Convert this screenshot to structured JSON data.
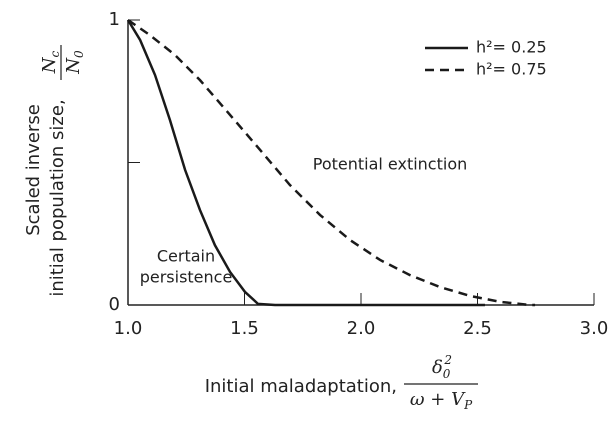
{
  "chart_data": {
    "type": "line",
    "ylabel_line1": "Scaled inverse",
    "ylabel_line2": "initial population size,",
    "ylabel_numerator": "N",
    "ylabel_numerator_sub": "c",
    "ylabel_denominator": "N",
    "ylabel_denominator_sub": "0",
    "xlabel": "Initial maladaptation,",
    "xlabel_numerator": "δ",
    "xlabel_numerator_sub": "0",
    "xlabel_numerator_sup": "2",
    "xlabel_denominator": "ω + V",
    "xlabel_denominator_sub": "P",
    "annotations": [
      "Potential extinction",
      "Certain",
      "persistence"
    ],
    "xlim": [
      1,
      3
    ],
    "ylim": [
      0,
      1
    ],
    "xticks": [
      {
        "value": 1,
        "label": "1.0"
      },
      {
        "value": 1.5,
        "label": "1.5"
      },
      {
        "value": 2,
        "label": "2.0"
      },
      {
        "value": 2.5,
        "label": "2.5"
      },
      {
        "value": 3,
        "label": "3.0"
      }
    ],
    "yticks": [
      0,
      {
        "value": 0.5,
        "label": null
      },
      1
    ],
    "legend_position": "upper right",
    "series": [
      {
        "name": "h²= 0.25",
        "color": "#1a1a1a",
        "dash": "solid",
        "x": [
          1.0,
          1.052,
          1.116,
          1.18,
          1.245,
          1.309,
          1.373,
          1.438,
          1.502,
          1.558,
          1.631,
          2.532
        ],
        "values": [
          1,
          0.93,
          0.807,
          0.649,
          0.474,
          0.333,
          0.21,
          0.116,
          0.046,
          0.004,
          0,
          0
        ]
      },
      {
        "name": "h²= 0.75",
        "color": "#1a1a1a",
        "dash": "dashed",
        "x": [
          1.0,
          1.094,
          1.202,
          1.309,
          1.438,
          1.567,
          1.695,
          1.824,
          1.953,
          2.082,
          2.21,
          2.339,
          2.468,
          2.597,
          2.725,
          2.747
        ],
        "values": [
          1,
          0.947,
          0.877,
          0.789,
          0.667,
          0.544,
          0.421,
          0.316,
          0.228,
          0.158,
          0.105,
          0.063,
          0.032,
          0.011,
          0,
          0
        ]
      }
    ]
  }
}
